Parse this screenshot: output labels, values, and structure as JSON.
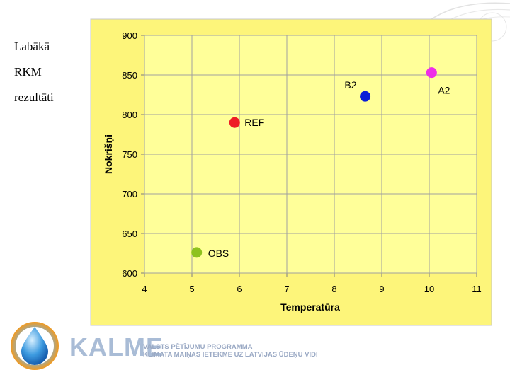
{
  "side_title": {
    "line1": "Labākā",
    "line2": "RKM",
    "line3": "rezultāti"
  },
  "footer": {
    "brand": "KALME",
    "program_line1": "VALSTS PĒTĪJUMU PROGRAMMA",
    "program_line2": "KLIMATA MAIŅAS IETEKME UZ LATVIJAS ŪDEŅU VIDI"
  },
  "colors": {
    "plot_background": "#ffff99",
    "frame_background": "#fdf57a",
    "grid": "#a0a0a0",
    "brand": "#a9bcd6"
  },
  "chart_data": {
    "type": "scatter",
    "xlabel": "Temperatūra",
    "ylabel": "Nokrišņi",
    "xlim": [
      4,
      11
    ],
    "ylim": [
      600,
      900
    ],
    "x_ticks": [
      4,
      5,
      6,
      7,
      8,
      9,
      10,
      11
    ],
    "y_ticks": [
      600,
      650,
      700,
      750,
      800,
      850,
      900
    ],
    "grid": true,
    "points": [
      {
        "label": "OBS",
        "x": 5.1,
        "y": 626,
        "color": "#8ec21e"
      },
      {
        "label": "REF",
        "x": 5.9,
        "y": 790,
        "color": "#ee1c25"
      },
      {
        "label": "B2",
        "x": 8.65,
        "y": 823,
        "color": "#0a1fd6"
      },
      {
        "label": "A2",
        "x": 10.05,
        "y": 853,
        "color": "#ee2ee8"
      }
    ]
  }
}
